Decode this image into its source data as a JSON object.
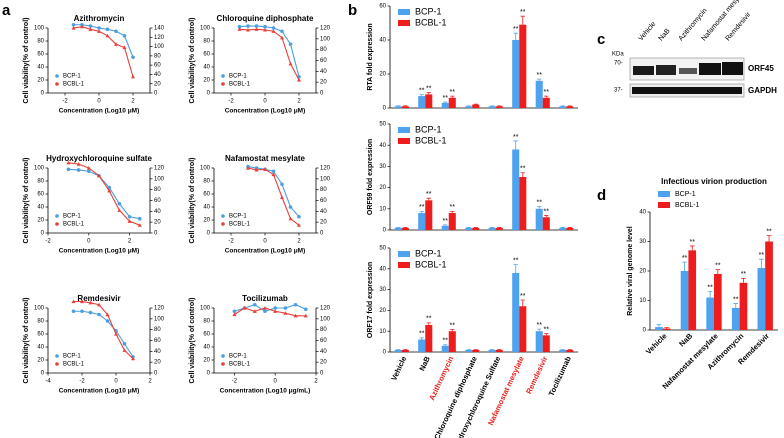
{
  "panel_labels": [
    "a",
    "b",
    "c",
    "d"
  ],
  "chart_data": [
    {
      "type": "line",
      "title": "Azithromycin",
      "xlabel": "Concentration (Log10 μM)",
      "ylabel": "Cell viability(% of control)",
      "x": [
        -1.5,
        -1,
        -0.5,
        0,
        0.5,
        1,
        1.5,
        2
      ],
      "xlim": [
        -3,
        3
      ],
      "xticks": [
        -2,
        0,
        2
      ],
      "ylim": [
        0,
        100
      ],
      "yticks": [
        0,
        20,
        40,
        60,
        80,
        100
      ],
      "y2lim": [
        0,
        140
      ],
      "y2ticks": [
        0,
        20,
        40,
        60,
        80,
        100,
        120,
        140
      ],
      "series": [
        {
          "name": "BCP-1",
          "color": "#4a9fe0",
          "values": [
            105,
            105,
            103,
            100,
            98,
            95,
            88,
            55
          ]
        },
        {
          "name": "BCBL-1",
          "color": "#e8403a",
          "values": [
            100,
            102,
            98,
            95,
            88,
            75,
            70,
            25
          ]
        }
      ]
    },
    {
      "type": "line",
      "title": "Chloroquine diphosphate",
      "xlabel": "Concentration (Log10 μM)",
      "ylabel": "Cell viability(% of control)",
      "x": [
        -1.5,
        -1,
        -0.5,
        0,
        0.5,
        1,
        1.5,
        2
      ],
      "xlim": [
        -3,
        3
      ],
      "xticks": [
        -2,
        0,
        2
      ],
      "ylim": [
        0,
        100
      ],
      "yticks": [
        0,
        20,
        40,
        60,
        80,
        100
      ],
      "y2lim": [
        0,
        120
      ],
      "y2ticks": [
        0,
        20,
        40,
        60,
        80,
        100,
        120
      ],
      "series": [
        {
          "name": "BCP-1",
          "color": "#4a9fe0",
          "values": [
            102,
            103,
            103,
            102,
            100,
            95,
            75,
            25
          ]
        },
        {
          "name": "BCBL-1",
          "color": "#e8403a",
          "values": [
            98,
            97,
            98,
            97,
            95,
            85,
            45,
            20
          ]
        }
      ]
    },
    {
      "type": "line",
      "title": "Hydroxychloroquine sulfate",
      "xlabel": "Concentration (Log10 μM)",
      "ylabel": "Cell viability(% of control)",
      "x": [
        -1,
        -0.5,
        0,
        0.5,
        1,
        1.5,
        2,
        2.5
      ],
      "xlim": [
        -2,
        3
      ],
      "xticks": [
        -2,
        0,
        2
      ],
      "ylim": [
        0,
        100
      ],
      "yticks": [
        0,
        20,
        40,
        60,
        80,
        100
      ],
      "y2lim": [
        0,
        120
      ],
      "y2ticks": [
        0,
        20,
        40,
        60,
        80,
        100,
        120
      ],
      "series": [
        {
          "name": "BCP-1",
          "color": "#4a9fe0",
          "values": [
            98,
            97,
            95,
            88,
            70,
            45,
            25,
            22
          ]
        },
        {
          "name": "BCBL-1",
          "color": "#e8403a",
          "values": [
            108,
            106,
            100,
            88,
            65,
            35,
            18,
            12
          ]
        }
      ]
    },
    {
      "type": "line",
      "title": "Nafamostat mesylate",
      "xlabel": "Concentration (Log10 μM)",
      "ylabel": "Cell viability(% of control)",
      "x": [
        -1,
        -0.5,
        0,
        0.5,
        1,
        1.5,
        2
      ],
      "xlim": [
        -3,
        3
      ],
      "xticks": [
        -2,
        0,
        2
      ],
      "ylim": [
        0,
        100
      ],
      "yticks": [
        0,
        20,
        40,
        60,
        80,
        100
      ],
      "y2lim": [
        0,
        120
      ],
      "y2ticks": [
        0,
        20,
        40,
        60,
        80,
        100,
        120
      ],
      "series": [
        {
          "name": "BCP-1",
          "color": "#4a9fe0",
          "values": [
            102,
            100,
            98,
            95,
            75,
            40,
            25
          ]
        },
        {
          "name": "BCBL-1",
          "color": "#e8403a",
          "values": [
            100,
            97,
            98,
            90,
            55,
            22,
            12
          ]
        }
      ]
    },
    {
      "type": "line",
      "title": "Remdesivir",
      "xlabel": "Concentration (Log10 μM)",
      "ylabel": "Cell viability(% of control)",
      "x": [
        -2.5,
        -2,
        -1.5,
        -1,
        -0.5,
        0,
        0.5,
        1
      ],
      "xlim": [
        -4,
        2
      ],
      "xticks": [
        -4,
        -2,
        0,
        2
      ],
      "ylim": [
        0,
        100
      ],
      "yticks": [
        0,
        20,
        40,
        60,
        80,
        100
      ],
      "y2lim": [
        0,
        120
      ],
      "y2ticks": [
        0,
        20,
        40,
        60,
        80,
        100,
        120
      ],
      "series": [
        {
          "name": "BCP-1",
          "color": "#4a9fe0",
          "values": [
            95,
            95,
            93,
            90,
            80,
            65,
            45,
            25
          ]
        },
        {
          "name": "BCBL-1",
          "color": "#e8403a",
          "values": [
            110,
            110,
            108,
            105,
            90,
            60,
            35,
            22
          ]
        }
      ]
    },
    {
      "type": "line",
      "title": "Tocilizumab",
      "xlabel": "Concentration (Log10 μg/mL)",
      "ylabel": "Cell viability(% of control)",
      "x": [
        -2,
        -1.5,
        -1,
        -0.5,
        0,
        0.5,
        1,
        1.5
      ],
      "xlim": [
        -3,
        2
      ],
      "xticks": [
        -2,
        0,
        2
      ],
      "ylim": [
        0,
        100
      ],
      "yticks": [
        0,
        20,
        40,
        60,
        80,
        100
      ],
      "y2lim": [
        0,
        120
      ],
      "y2ticks": [
        0,
        20,
        40,
        60,
        80,
        100,
        120
      ],
      "series": [
        {
          "name": "BCP-1",
          "color": "#4a9fe0",
          "values": [
            95,
            100,
            105,
            95,
            100,
            100,
            105,
            98
          ]
        },
        {
          "name": "BCBL-1",
          "color": "#e8403a",
          "values": [
            90,
            100,
            95,
            100,
            95,
            92,
            88,
            88
          ]
        }
      ]
    },
    {
      "type": "bar",
      "ylabel": "RTA fold expression",
      "ylim": [
        0,
        60
      ],
      "yticks": [
        0,
        20,
        40,
        60
      ],
      "legend": "upper left",
      "series": [
        {
          "name": "BCP-1",
          "color": "#4da3ef",
          "values": [
            1,
            7,
            3,
            1,
            1,
            40,
            16,
            1
          ],
          "errors": [
            0.3,
            0.8,
            0.5,
            0.2,
            0.2,
            4,
            1,
            0.2
          ],
          "significance": [
            null,
            "**",
            "**",
            null,
            null,
            "**",
            "**",
            null
          ]
        },
        {
          "name": "BCBL-1",
          "color": "#ee1c1c",
          "values": [
            1,
            8,
            6,
            2,
            1,
            49,
            6,
            1
          ],
          "errors": [
            0.3,
            1,
            1,
            0.3,
            0.2,
            5,
            1,
            0.2
          ],
          "significance": [
            null,
            "**",
            "**",
            null,
            null,
            "**",
            "**",
            null
          ]
        }
      ]
    },
    {
      "type": "bar",
      "ylabel": "ORF59 fold expression",
      "ylim": [
        0,
        50
      ],
      "yticks": [
        0,
        10,
        20,
        30,
        40,
        50
      ],
      "legend": "upper left",
      "series": [
        {
          "name": "BCP-1",
          "color": "#4da3ef",
          "values": [
            1,
            8,
            2,
            1,
            1,
            38,
            10,
            1
          ],
          "errors": [
            0.2,
            0.8,
            0.4,
            0.2,
            0.2,
            4,
            1,
            0.2
          ],
          "significance": [
            null,
            "**",
            "**",
            null,
            null,
            "**",
            "**",
            null
          ]
        },
        {
          "name": "BCBL-1",
          "color": "#ee1c1c",
          "values": [
            1,
            14,
            8,
            1,
            1,
            25,
            6,
            1
          ],
          "errors": [
            0.2,
            1,
            0.8,
            0.2,
            0.2,
            2,
            0.8,
            0.2
          ],
          "significance": [
            null,
            "**",
            "**",
            null,
            null,
            "**",
            "**",
            null
          ]
        }
      ]
    },
    {
      "type": "bar",
      "ylabel": "ORF17 fold expression",
      "ylim": [
        0,
        50
      ],
      "yticks": [
        0,
        10,
        20,
        30,
        40,
        50
      ],
      "legend": "upper left",
      "categories": [
        "Vehicle",
        "NaB",
        "Azithromycin",
        "Chloroquine diphosphate",
        "Hydroxychloroquine Sulfate",
        "Nafamostat mesylate",
        "Remdesivir",
        "Tocilizumab"
      ],
      "category_colors": [
        "#000000",
        "#000000",
        "#e8201c",
        "#000000",
        "#000000",
        "#e8201c",
        "#e8201c",
        "#000000"
      ],
      "series": [
        {
          "name": "BCP-1",
          "color": "#4da3ef",
          "values": [
            1,
            6,
            3,
            1,
            1,
            38,
            10,
            1
          ],
          "errors": [
            0.2,
            0.8,
            0.5,
            0.2,
            0.2,
            4,
            1,
            0.2
          ],
          "significance": [
            null,
            "**",
            "**",
            null,
            null,
            "**",
            "**",
            null
          ]
        },
        {
          "name": "BCBL-1",
          "color": "#ee1c1c",
          "values": [
            1,
            13,
            10,
            1,
            1,
            22,
            8,
            1
          ],
          "errors": [
            0.2,
            1,
            0.8,
            0.2,
            0.2,
            3,
            0.8,
            0.2
          ],
          "significance": [
            null,
            "**",
            "**",
            null,
            null,
            "**",
            "**",
            null
          ]
        }
      ]
    },
    {
      "type": "bar",
      "title": "Infectious virion production",
      "ylabel": "Relative viral genome level",
      "ylim": [
        0,
        40
      ],
      "yticks": [
        0,
        10,
        20,
        30,
        40
      ],
      "legend": "upper left",
      "categories": [
        "Vehicle",
        "NaB",
        "Nafamostat mesylate",
        "Azithromycin",
        "Remdesivir"
      ],
      "series": [
        {
          "name": "BCP-1",
          "color": "#4da3ef",
          "values": [
            1,
            20,
            11,
            7.5,
            21
          ],
          "errors": [
            0.8,
            3,
            2,
            1.5,
            3
          ],
          "significance": [
            null,
            "**",
            "**",
            "**",
            "**"
          ]
        },
        {
          "name": "BCBL-1",
          "color": "#ee1c1c",
          "values": [
            0.5,
            27,
            19,
            16,
            30
          ],
          "errors": [
            0.3,
            1.5,
            1.5,
            1.5,
            2
          ],
          "significance": [
            null,
            "**",
            "**",
            "**",
            "**"
          ]
        }
      ]
    }
  ],
  "blot": {
    "lanes": [
      "Vehicle",
      "NaB",
      "Azithromycin",
      "Nafamostat mesylate",
      "Remdesivir"
    ],
    "kda": "KDa",
    "markers": [
      "70-",
      "37-"
    ],
    "bands": [
      "ORF45",
      "GAPDH"
    ]
  }
}
